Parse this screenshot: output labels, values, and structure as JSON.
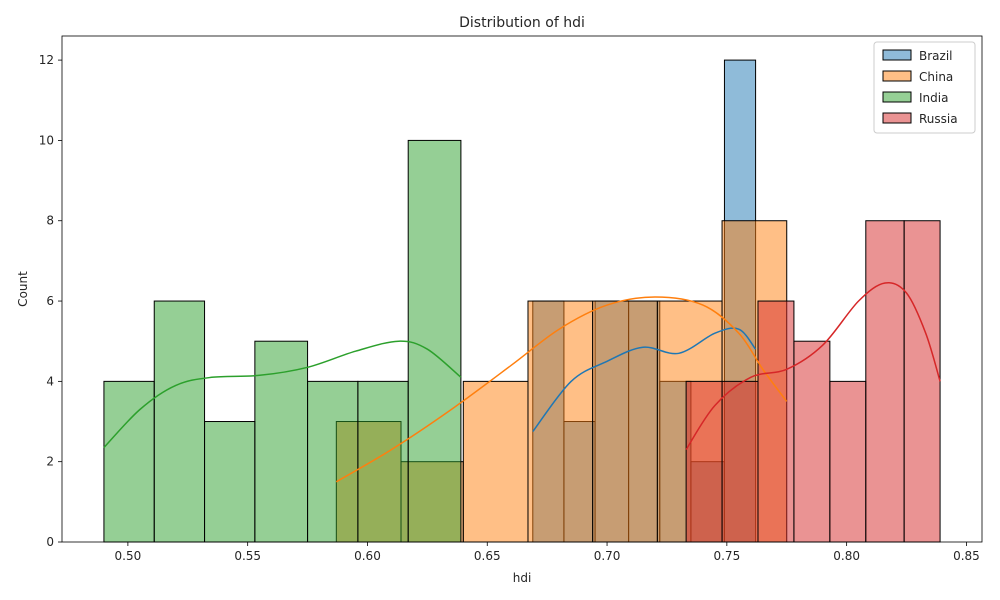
{
  "chart_data": {
    "type": "histogram",
    "title": "Distribution of hdi",
    "xlabel": "hdi",
    "ylabel": "Count",
    "xlim": [
      0.4725,
      0.8565
    ],
    "ylim": [
      0,
      12.6
    ],
    "x_ticks": [
      0.5,
      0.55,
      0.6,
      0.65,
      0.7,
      0.75,
      0.8,
      0.85
    ],
    "x_tick_labels": [
      "0.50",
      "0.55",
      "0.60",
      "0.65",
      "0.70",
      "0.75",
      "0.80",
      "0.85"
    ],
    "y_ticks": [
      0,
      2,
      4,
      6,
      8,
      10,
      12
    ],
    "y_tick_labels": [
      "0",
      "2",
      "4",
      "6",
      "8",
      "10",
      "12"
    ],
    "legend_position": "upper right",
    "series": [
      {
        "name": "Brazil",
        "color": "#1f77b4",
        "bins": [
          {
            "x0": 0.669,
            "x1": 0.682,
            "count": 6
          },
          {
            "x0": 0.682,
            "x1": 0.695,
            "count": 3
          },
          {
            "x0": 0.695,
            "x1": 0.709,
            "count": 6
          },
          {
            "x0": 0.709,
            "x1": 0.722,
            "count": 6
          },
          {
            "x0": 0.722,
            "x1": 0.735,
            "count": 4
          },
          {
            "x0": 0.735,
            "x1": 0.749,
            "count": 2
          },
          {
            "x0": 0.749,
            "x1": 0.762,
            "count": 12
          }
        ],
        "kde": [
          [
            0.669,
            2.75
          ],
          [
            0.685,
            4.0
          ],
          [
            0.7,
            4.5
          ],
          [
            0.715,
            4.85
          ],
          [
            0.73,
            4.7
          ],
          [
            0.745,
            5.2
          ],
          [
            0.755,
            5.3
          ],
          [
            0.762,
            4.8
          ]
        ]
      },
      {
        "name": "China",
        "color": "#ff7f0e",
        "bins": [
          {
            "x0": 0.587,
            "x1": 0.614,
            "count": 3
          },
          {
            "x0": 0.614,
            "x1": 0.64,
            "count": 2
          },
          {
            "x0": 0.64,
            "x1": 0.667,
            "count": 4
          },
          {
            "x0": 0.667,
            "x1": 0.694,
            "count": 6
          },
          {
            "x0": 0.694,
            "x1": 0.721,
            "count": 6
          },
          {
            "x0": 0.721,
            "x1": 0.748,
            "count": 6
          },
          {
            "x0": 0.748,
            "x1": 0.775,
            "count": 8
          }
        ],
        "kde": [
          [
            0.587,
            1.5
          ],
          [
            0.61,
            2.3
          ],
          [
            0.635,
            3.3
          ],
          [
            0.66,
            4.4
          ],
          [
            0.68,
            5.3
          ],
          [
            0.7,
            5.9
          ],
          [
            0.72,
            6.1
          ],
          [
            0.74,
            5.9
          ],
          [
            0.755,
            5.2
          ],
          [
            0.765,
            4.3
          ],
          [
            0.775,
            3.5
          ]
        ]
      },
      {
        "name": "India",
        "color": "#2ca02c",
        "bins": [
          {
            "x0": 0.49,
            "x1": 0.511,
            "count": 4
          },
          {
            "x0": 0.511,
            "x1": 0.532,
            "count": 6
          },
          {
            "x0": 0.532,
            "x1": 0.553,
            "count": 3
          },
          {
            "x0": 0.553,
            "x1": 0.575,
            "count": 5
          },
          {
            "x0": 0.575,
            "x1": 0.596,
            "count": 4
          },
          {
            "x0": 0.596,
            "x1": 0.617,
            "count": 4
          },
          {
            "x0": 0.617,
            "x1": 0.639,
            "count": 10
          }
        ],
        "kde": [
          [
            0.49,
            2.35
          ],
          [
            0.505,
            3.3
          ],
          [
            0.52,
            3.9
          ],
          [
            0.535,
            4.1
          ],
          [
            0.555,
            4.15
          ],
          [
            0.575,
            4.35
          ],
          [
            0.595,
            4.75
          ],
          [
            0.613,
            5.0
          ],
          [
            0.625,
            4.8
          ],
          [
            0.639,
            4.1
          ]
        ]
      },
      {
        "name": "Russia",
        "color": "#d62728",
        "bins": [
          {
            "x0": 0.733,
            "x1": 0.748,
            "count": 4
          },
          {
            "x0": 0.748,
            "x1": 0.763,
            "count": 4
          },
          {
            "x0": 0.763,
            "x1": 0.778,
            "count": 6
          },
          {
            "x0": 0.778,
            "x1": 0.793,
            "count": 5
          },
          {
            "x0": 0.793,
            "x1": 0.808,
            "count": 4
          },
          {
            "x0": 0.808,
            "x1": 0.824,
            "count": 8
          },
          {
            "x0": 0.824,
            "x1": 0.839,
            "count": 8
          }
        ],
        "kde": [
          [
            0.733,
            2.3
          ],
          [
            0.745,
            3.4
          ],
          [
            0.76,
            4.1
          ],
          [
            0.775,
            4.3
          ],
          [
            0.79,
            4.9
          ],
          [
            0.805,
            6.0
          ],
          [
            0.816,
            6.45
          ],
          [
            0.825,
            6.2
          ],
          [
            0.833,
            5.2
          ],
          [
            0.839,
            4.0
          ]
        ]
      }
    ]
  }
}
